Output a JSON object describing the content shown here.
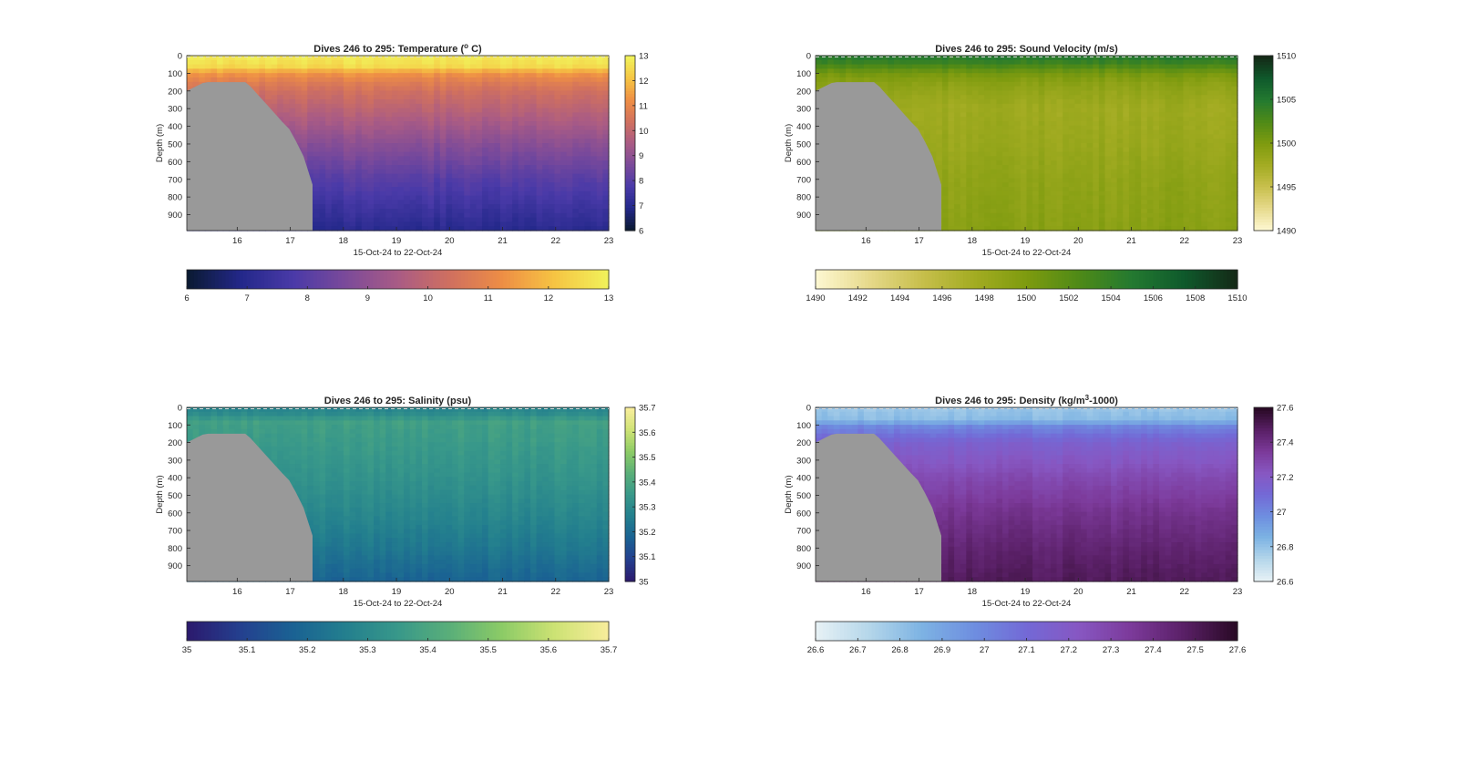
{
  "chart_data": [
    {
      "type": "heatmap",
      "title": "Dives 246 to 295: Temperature (",
      "title_sup": "o",
      "title_tail": " C)",
      "xlabel": "15-Oct-24 to 22-Oct-24",
      "ylabel": "Depth (m)",
      "x_ticks": [
        "16",
        "17",
        "18",
        "19",
        "20",
        "21",
        "22",
        "23"
      ],
      "x_tick_values": [
        16,
        17,
        18,
        19,
        20,
        21,
        22,
        23
      ],
      "xlim": [
        15.05,
        23
      ],
      "y_ticks": [
        "0",
        "100",
        "200",
        "300",
        "400",
        "500",
        "600",
        "700",
        "800",
        "900"
      ],
      "y_tick_values": [
        0,
        100,
        200,
        300,
        400,
        500,
        600,
        700,
        800,
        900
      ],
      "ylim": [
        0,
        990
      ],
      "colorbar_ticks": [
        "6",
        "7",
        "8",
        "9",
        "10",
        "11",
        "12",
        "13"
      ],
      "clim": [
        6,
        13
      ],
      "colormap": [
        "#0b1a33",
        "#23288a",
        "#4a3aa8",
        "#7b4a9a",
        "#a95b85",
        "#d0705f",
        "#ee8e45",
        "#f6c443",
        "#f1f15a"
      ],
      "profile": {
        "z": [
          0,
          60,
          100,
          150,
          200,
          300,
          500,
          700,
          990
        ],
        "values": [
          12.9,
          12.6,
          11.4,
          10.8,
          10.4,
          9.9,
          8.9,
          8.0,
          7.0
        ]
      },
      "no_data_color": "#999999",
      "no_data_region": {
        "x": [
          15.05,
          15.05,
          15.25,
          15.35,
          15.45,
          16.15,
          16.25,
          16.4,
          16.55,
          16.7,
          16.85,
          16.98,
          17.1,
          17.25,
          17.42,
          17.42
        ],
        "y": [
          990,
          200,
          170,
          155,
          150,
          150,
          175,
          225,
          275,
          325,
          375,
          415,
          480,
          570,
          730,
          990
        ]
      }
    },
    {
      "type": "heatmap",
      "title": "Dives 246 to 295: Sound Velocity (m/s)",
      "xlabel": "15-Oct-24 to 22-Oct-24",
      "ylabel": "Depth (m)",
      "x_ticks": [
        "16",
        "17",
        "18",
        "19",
        "20",
        "21",
        "22",
        "23"
      ],
      "x_tick_values": [
        16,
        17,
        18,
        19,
        20,
        21,
        22,
        23
      ],
      "xlim": [
        15.05,
        23
      ],
      "y_ticks": [
        "0",
        "100",
        "200",
        "300",
        "400",
        "500",
        "600",
        "700",
        "800",
        "900"
      ],
      "y_tick_values": [
        0,
        100,
        200,
        300,
        400,
        500,
        600,
        700,
        800,
        900
      ],
      "ylim": [
        0,
        990
      ],
      "colorbar_ticks": [
        "1490",
        "1495",
        "1500",
        "1505",
        "1510"
      ],
      "colorbar_ticks_h": [
        "1490",
        "1492",
        "1494",
        "1496",
        "1498",
        "1500",
        "1502",
        "1504",
        "1506",
        "1508",
        "1510"
      ],
      "clim": [
        1490,
        1510
      ],
      "colormap": [
        "#fdf7d0",
        "#e6d98a",
        "#c7bf4c",
        "#a3ac22",
        "#7e9b0f",
        "#4f8a17",
        "#247a30",
        "#0f5a2c",
        "#142a17"
      ],
      "profile": {
        "z": [
          0,
          40,
          100,
          150,
          200,
          300,
          500,
          700,
          990
        ],
        "values": [
          1505.2,
          1503.8,
          1500.5,
          1499.3,
          1498.6,
          1497.8,
          1498.2,
          1498.8,
          1499.3
        ]
      },
      "no_data_color": "#999999",
      "no_data_region": {
        "x": [
          15.05,
          15.05,
          15.25,
          15.35,
          15.45,
          16.15,
          16.25,
          16.4,
          16.55,
          16.7,
          16.85,
          16.98,
          17.1,
          17.25,
          17.42,
          17.42
        ],
        "y": [
          990,
          200,
          170,
          155,
          150,
          150,
          175,
          225,
          275,
          325,
          375,
          415,
          480,
          570,
          730,
          990
        ]
      }
    },
    {
      "type": "heatmap",
      "title": "Dives 246 to 295: Salinity (psu)",
      "xlabel": "15-Oct-24 to 22-Oct-24",
      "ylabel": "Depth (m)",
      "x_ticks": [
        "16",
        "17",
        "18",
        "19",
        "20",
        "21",
        "22",
        "23"
      ],
      "x_tick_values": [
        16,
        17,
        18,
        19,
        20,
        21,
        22,
        23
      ],
      "xlim": [
        15.05,
        23
      ],
      "y_ticks": [
        "0",
        "100",
        "200",
        "300",
        "400",
        "500",
        "600",
        "700",
        "800",
        "900"
      ],
      "y_tick_values": [
        0,
        100,
        200,
        300,
        400,
        500,
        600,
        700,
        800,
        900
      ],
      "ylim": [
        0,
        990
      ],
      "colorbar_ticks": [
        "35",
        "35.1",
        "35.2",
        "35.3",
        "35.4",
        "35.5",
        "35.6",
        "35.7"
      ],
      "clim": [
        35.0,
        35.7
      ],
      "colormap": [
        "#2b1a6e",
        "#24408f",
        "#1a6293",
        "#237f8e",
        "#38988a",
        "#5aaf79",
        "#8ccb66",
        "#cde274",
        "#f7ed9a"
      ],
      "profile": {
        "z": [
          0,
          40,
          80,
          120,
          200,
          400,
          600,
          800,
          990
        ],
        "values": [
          35.28,
          35.31,
          35.38,
          35.37,
          35.36,
          35.33,
          35.29,
          35.24,
          35.18
        ]
      },
      "no_data_color": "#999999",
      "no_data_region": {
        "x": [
          15.05,
          15.05,
          15.25,
          15.35,
          15.45,
          16.15,
          16.25,
          16.4,
          16.55,
          16.7,
          16.85,
          16.98,
          17.1,
          17.25,
          17.42,
          17.42
        ],
        "y": [
          990,
          200,
          170,
          155,
          150,
          150,
          175,
          225,
          275,
          325,
          375,
          415,
          480,
          570,
          730,
          990
        ]
      }
    },
    {
      "type": "heatmap",
      "title": "Dives 246 to 295: Density (kg/m",
      "title_sup": "3",
      "title_tail": "-1000)",
      "xlabel": "15-Oct-24 to 22-Oct-24",
      "ylabel": "Depth (m)",
      "x_ticks": [
        "16",
        "17",
        "18",
        "19",
        "20",
        "21",
        "22",
        "23"
      ],
      "x_tick_values": [
        16,
        17,
        18,
        19,
        20,
        21,
        22,
        23
      ],
      "xlim": [
        15.05,
        23
      ],
      "y_ticks": [
        "0",
        "100",
        "200",
        "300",
        "400",
        "500",
        "600",
        "700",
        "800",
        "900"
      ],
      "y_tick_values": [
        0,
        100,
        200,
        300,
        400,
        500,
        600,
        700,
        800,
        900
      ],
      "ylim": [
        0,
        990
      ],
      "colorbar_ticks": [
        "26.6",
        "26.8",
        "27",
        "27.2",
        "27.4",
        "27.6"
      ],
      "colorbar_ticks_h": [
        "26.6",
        "26.7",
        "26.8",
        "26.9",
        "27",
        "27.1",
        "27.2",
        "27.3",
        "27.4",
        "27.5",
        "27.6"
      ],
      "clim": [
        26.6,
        27.6
      ],
      "colormap": [
        "#e6f1f5",
        "#b4d6ea",
        "#7db3e3",
        "#6e8ee0",
        "#7369d6",
        "#8757c2",
        "#7c3a9a",
        "#5a2067",
        "#2a0a26"
      ],
      "profile": {
        "z": [
          0,
          70,
          110,
          200,
          400,
          600,
          800,
          990
        ],
        "values": [
          26.78,
          26.82,
          27.0,
          27.15,
          27.28,
          27.38,
          27.45,
          27.5
        ]
      },
      "no_data_color": "#999999",
      "no_data_region": {
        "x": [
          15.05,
          15.05,
          15.25,
          15.35,
          15.45,
          16.15,
          16.25,
          16.4,
          16.55,
          16.7,
          16.85,
          16.98,
          17.1,
          17.25,
          17.42,
          17.42
        ],
        "y": [
          990,
          200,
          170,
          155,
          150,
          150,
          175,
          225,
          275,
          325,
          375,
          415,
          480,
          570,
          730,
          990
        ]
      }
    }
  ]
}
